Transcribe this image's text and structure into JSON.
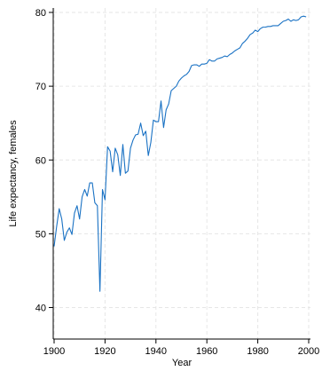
{
  "chart_data": {
    "type": "line",
    "title": "",
    "xlabel": "Year",
    "ylabel": "Life expectancy, females",
    "xlim": [
      1900,
      2000
    ],
    "ylim": [
      40,
      80
    ],
    "xticks": [
      1900,
      1920,
      1940,
      1960,
      1980,
      2000
    ],
    "yticks": [
      40,
      50,
      60,
      70,
      80
    ],
    "grid": true,
    "line_color": "#1a72c4",
    "series": [
      {
        "x": [
          1900,
          1901,
          1902,
          1903,
          1904,
          1905,
          1906,
          1907,
          1908,
          1909,
          1910,
          1911,
          1912,
          1913,
          1914,
          1915,
          1916,
          1917,
          1918,
          1919,
          1920,
          1921,
          1922,
          1923,
          1924,
          1925,
          1926,
          1927,
          1928,
          1929,
          1930,
          1931,
          1932,
          1933,
          1934,
          1935,
          1936,
          1937,
          1938,
          1939,
          1940,
          1941,
          1942,
          1943,
          1944,
          1945,
          1946,
          1947,
          1948,
          1949,
          1950,
          1951,
          1952,
          1953,
          1954,
          1955,
          1956,
          1957,
          1958,
          1959,
          1960,
          1961,
          1962,
          1963,
          1964,
          1965,
          1966,
          1967,
          1968,
          1969,
          1970,
          1971,
          1972,
          1973,
          1974,
          1975,
          1976,
          1977,
          1978,
          1979,
          1980,
          1981,
          1982,
          1983,
          1984,
          1985,
          1986,
          1987,
          1988,
          1989,
          1990,
          1991,
          1992,
          1993,
          1994,
          1995,
          1996,
          1997,
          1998,
          1999
        ],
        "values": [
          48.3,
          51.0,
          53.4,
          52.0,
          49.1,
          50.2,
          50.8,
          49.9,
          52.8,
          53.8,
          52.0,
          55.0,
          56.0,
          55.1,
          56.9,
          56.9,
          54.2,
          53.8,
          42.2,
          56.0,
          54.6,
          61.8,
          61.2,
          58.4,
          61.6,
          60.7,
          57.9,
          62.1,
          58.2,
          58.5,
          61.6,
          62.7,
          63.4,
          63.5,
          65.0,
          63.3,
          63.9,
          60.6,
          62.4,
          65.4,
          65.2,
          65.2,
          68.0,
          64.4,
          66.8,
          67.6,
          69.4,
          69.7,
          70.0,
          70.7,
          71.1,
          71.4,
          71.6,
          72.0,
          72.8,
          72.9,
          72.9,
          72.7,
          73.0,
          73.0,
          73.1,
          73.6,
          73.4,
          73.4,
          73.7,
          73.8,
          73.9,
          74.1,
          74.0,
          74.3,
          74.5,
          74.8,
          75.0,
          75.2,
          75.8,
          76.1,
          76.5,
          77.0,
          77.2,
          77.6,
          77.4,
          77.8,
          78.0,
          78.0,
          78.1,
          78.1,
          78.2,
          78.2,
          78.2,
          78.5,
          78.8,
          78.9,
          79.1,
          78.8,
          79.0,
          78.9,
          79.0,
          79.4,
          79.5,
          79.4
        ]
      }
    ]
  }
}
